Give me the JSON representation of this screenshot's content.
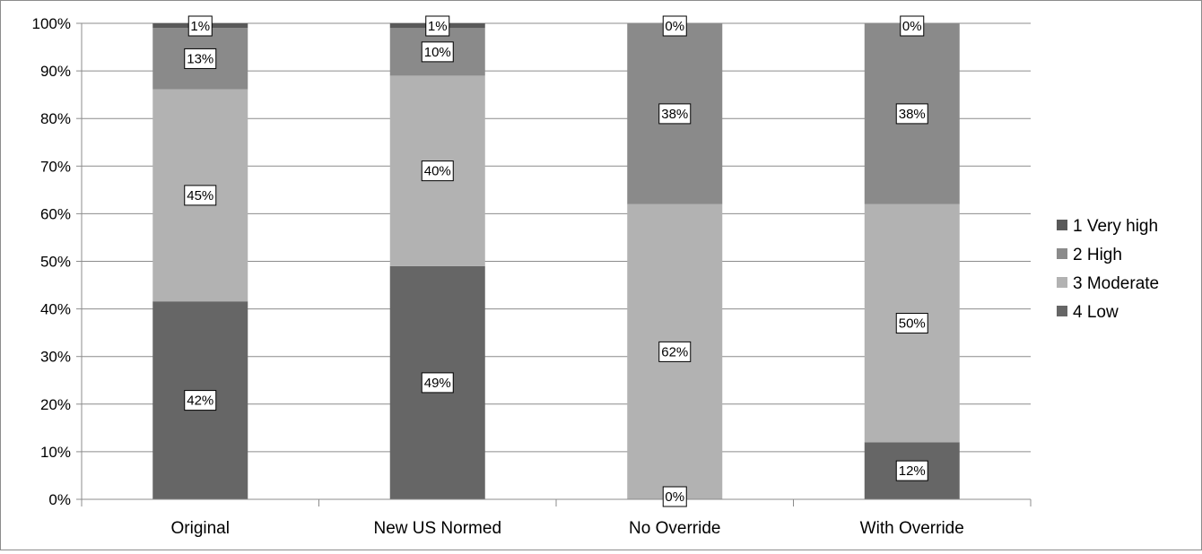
{
  "chart_data": {
    "type": "bar",
    "stacked": true,
    "percent_stacked": true,
    "categories": [
      "Original",
      "New US Normed",
      "No Override",
      "With Override"
    ],
    "series": [
      {
        "name": "4 Low",
        "color": "#666666",
        "values": [
          42,
          49,
          0,
          12
        ]
      },
      {
        "name": "3 Moderate",
        "color": "#b2b2b2",
        "values": [
          45,
          40,
          62,
          50
        ]
      },
      {
        "name": "2 High",
        "color": "#8a8a8a",
        "values": [
          13,
          10,
          38,
          38
        ]
      },
      {
        "name": "1 Very high",
        "color": "#595959",
        "values": [
          1,
          1,
          0,
          0
        ]
      }
    ],
    "data_labels": [
      [
        "42%",
        "49%",
        "0%",
        "12%"
      ],
      [
        "45%",
        "40%",
        "62%",
        "50%"
      ],
      [
        "13%",
        "10%",
        "38%",
        "38%"
      ],
      [
        "1%",
        "1%",
        "0%",
        "0%"
      ]
    ],
    "y_ticks": [
      "0%",
      "10%",
      "20%",
      "30%",
      "40%",
      "50%",
      "60%",
      "70%",
      "80%",
      "90%",
      "100%"
    ],
    "ylim": [
      0,
      100
    ],
    "grid": true,
    "legend_position": "right",
    "legend_order": [
      "1 Very high",
      "2 High",
      "3 Moderate",
      "4 Low"
    ],
    "title": "",
    "xlabel": "",
    "ylabel": ""
  }
}
